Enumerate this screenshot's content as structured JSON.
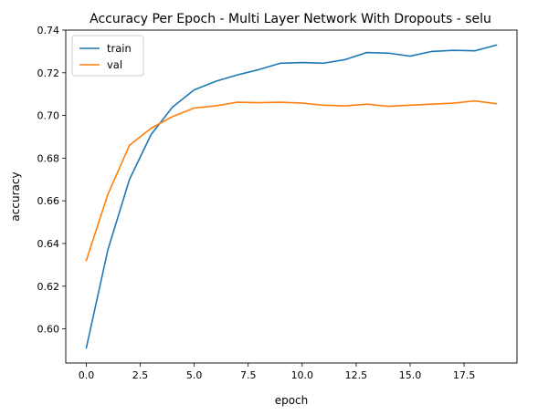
{
  "chart_data": {
    "type": "line",
    "title": "Accuracy Per Epoch - Multi Layer Network With Dropouts - selu",
    "xlabel": "epoch",
    "ylabel": "accuracy",
    "x": [
      0,
      1,
      2,
      3,
      4,
      5,
      6,
      7,
      8,
      9,
      10,
      11,
      12,
      13,
      14,
      15,
      16,
      17,
      18,
      19
    ],
    "series": [
      {
        "name": "train",
        "color": "#1f77b4",
        "values": [
          0.591,
          0.637,
          0.67,
          0.691,
          0.704,
          0.712,
          0.716,
          0.719,
          0.7215,
          0.7245,
          0.7248,
          0.7245,
          0.7262,
          0.7295,
          0.7292,
          0.7278,
          0.73,
          0.7305,
          0.7303,
          0.733
        ]
      },
      {
        "name": "val",
        "color": "#ff7f0e",
        "values": [
          0.632,
          0.663,
          0.686,
          0.694,
          0.6995,
          0.7035,
          0.7045,
          0.7062,
          0.706,
          0.7062,
          0.7058,
          0.7048,
          0.7045,
          0.7053,
          0.7043,
          0.7048,
          0.7053,
          0.7058,
          0.7068,
          0.7055
        ]
      }
    ],
    "xlim": [
      -0.95,
      19.95
    ],
    "ylim": [
      0.584,
      0.74
    ],
    "xticks": [
      0.0,
      2.5,
      5.0,
      7.5,
      10.0,
      12.5,
      15.0,
      17.5
    ],
    "xtick_labels": [
      "0.0",
      "2.5",
      "5.0",
      "7.5",
      "10.0",
      "12.5",
      "15.0",
      "17.5"
    ],
    "yticks": [
      0.6,
      0.62,
      0.64,
      0.66,
      0.68,
      0.7,
      0.72,
      0.74
    ],
    "ytick_labels": [
      "0.60",
      "0.62",
      "0.64",
      "0.66",
      "0.68",
      "0.70",
      "0.72",
      "0.74"
    ],
    "grid": false,
    "legend_position": "upper-left"
  }
}
